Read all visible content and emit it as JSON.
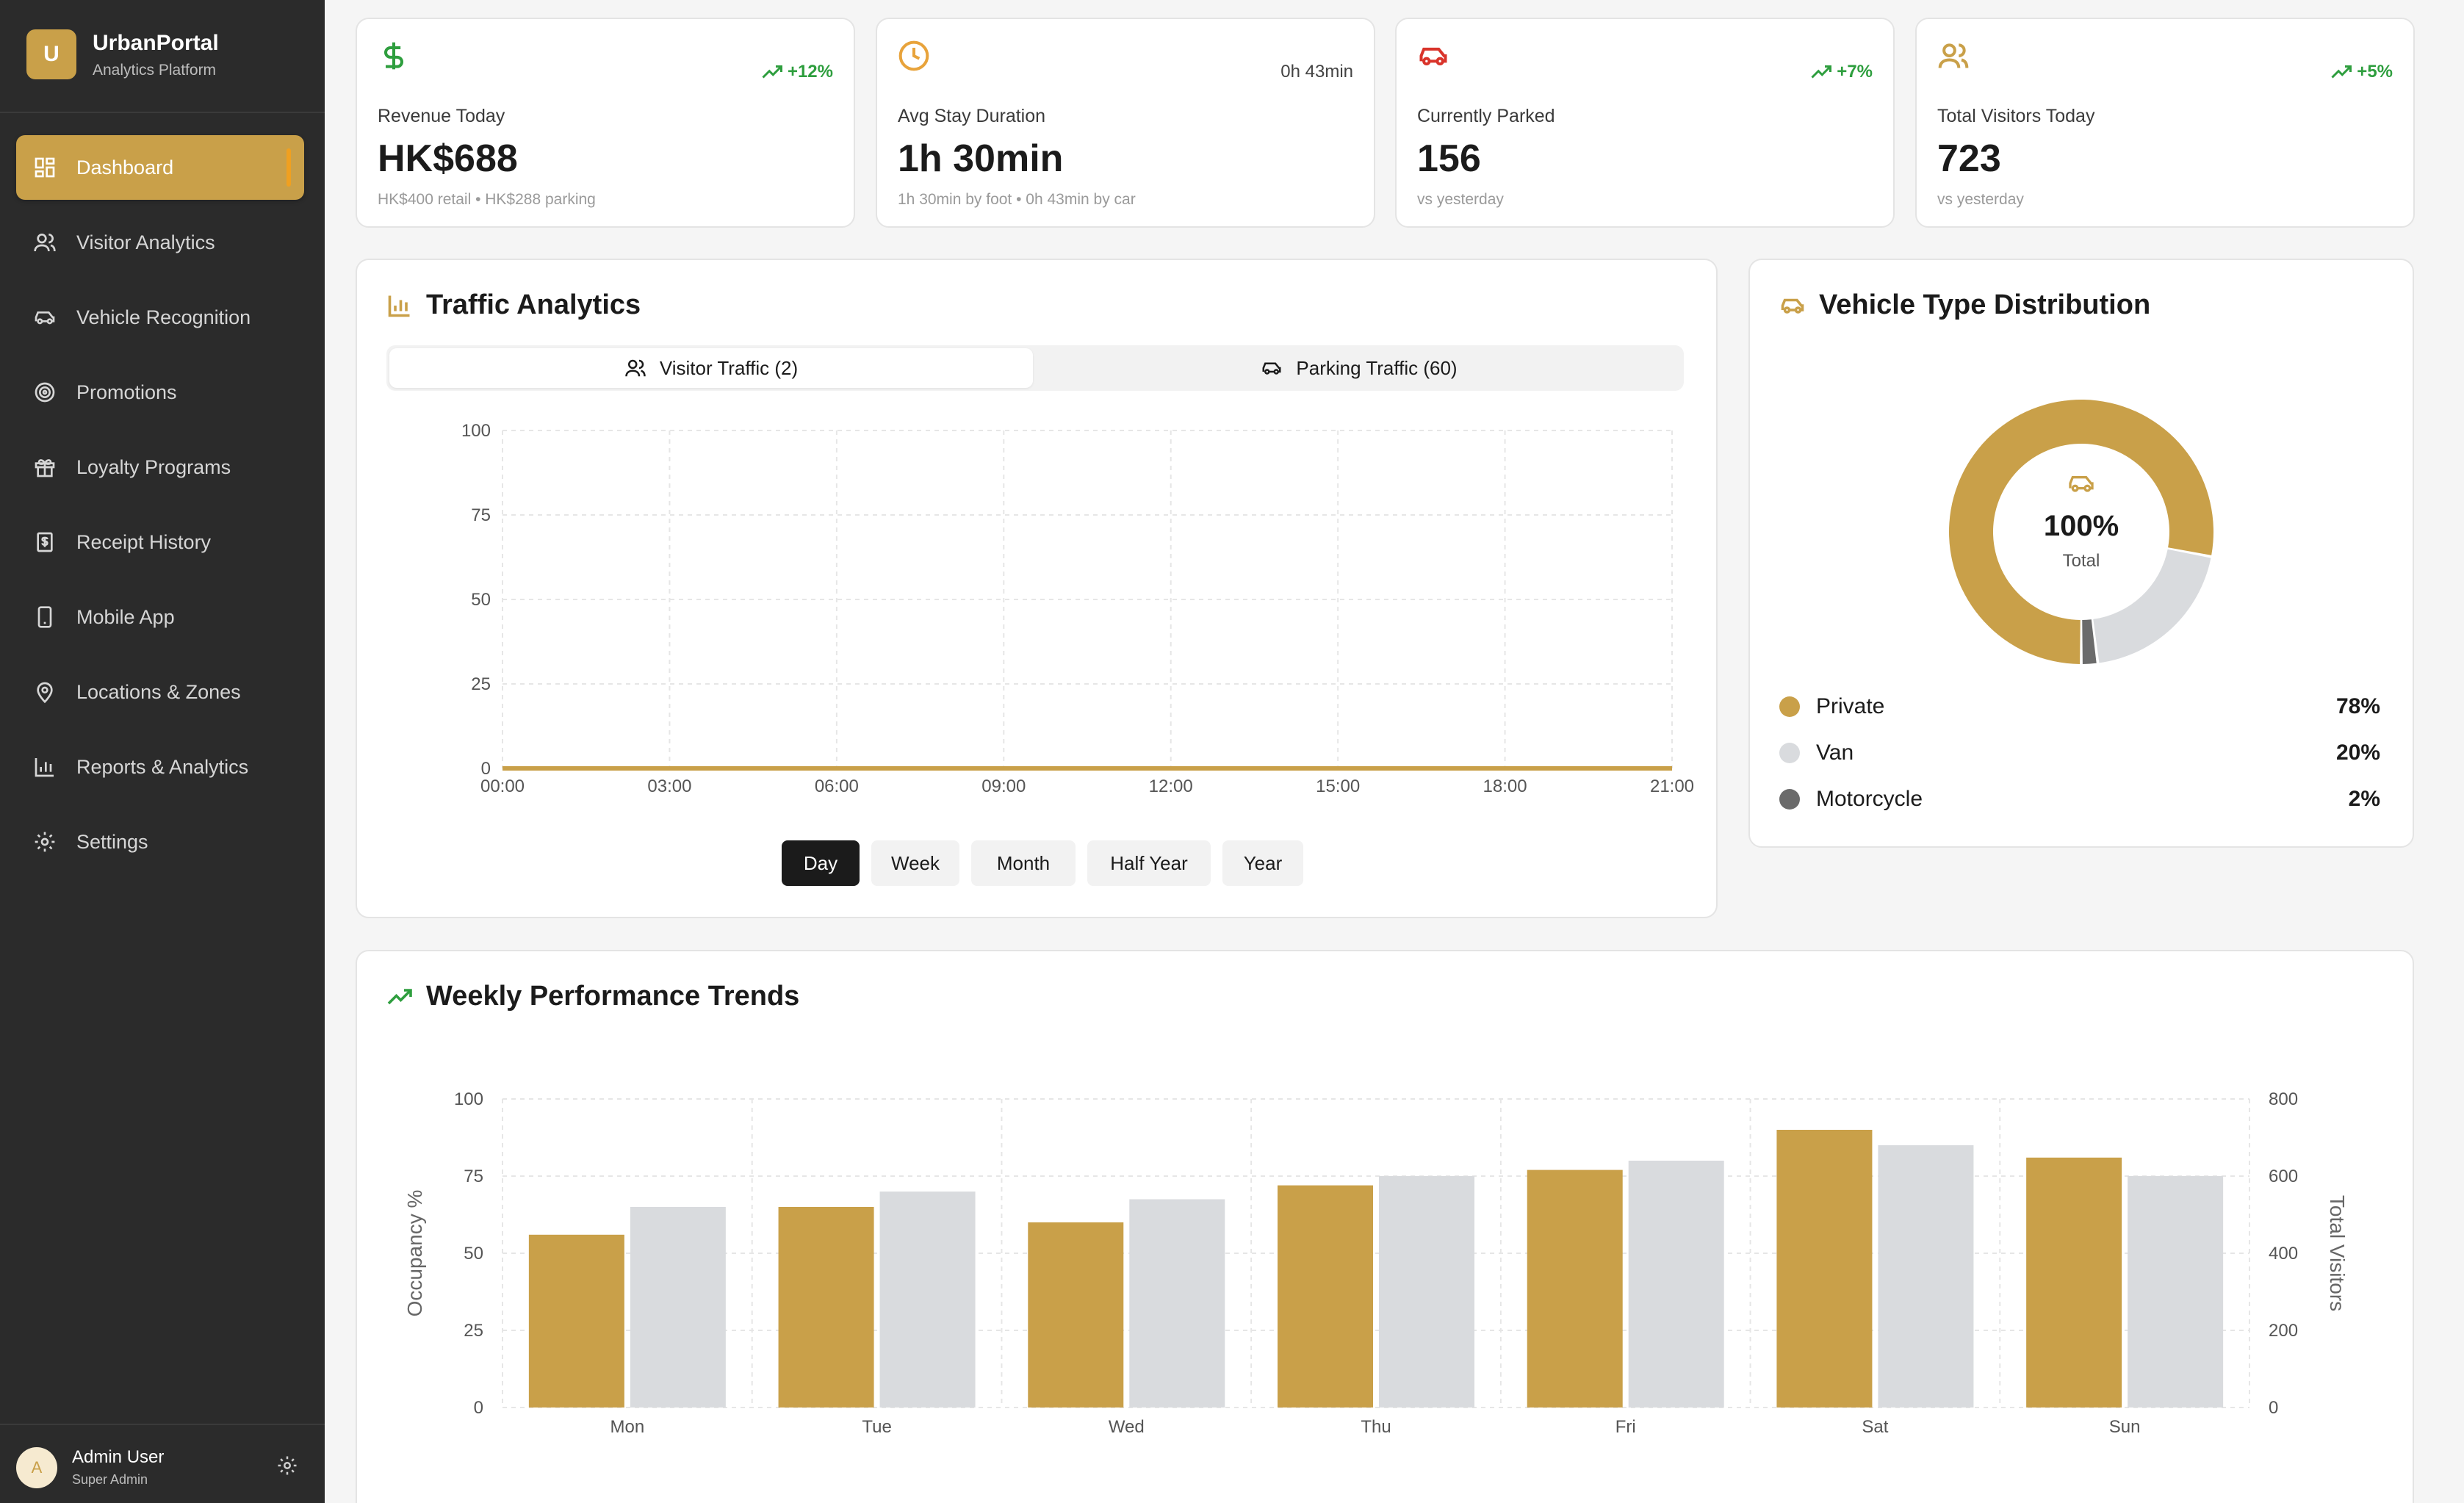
{
  "brand": {
    "logo_letter": "U",
    "name": "UrbanPortal",
    "subtitle": "Analytics Platform"
  },
  "sidebar": {
    "items": [
      {
        "label": "Dashboard",
        "icon": "dashboard-icon",
        "active": true
      },
      {
        "label": "Visitor Analytics",
        "icon": "users-icon"
      },
      {
        "label": "Vehicle Recognition",
        "icon": "car-icon"
      },
      {
        "label": "Promotions",
        "icon": "target-icon"
      },
      {
        "label": "Loyalty Programs",
        "icon": "gift-icon"
      },
      {
        "label": "Receipt History",
        "icon": "receipt-icon"
      },
      {
        "label": "Mobile App",
        "icon": "phone-icon"
      },
      {
        "label": "Locations & Zones",
        "icon": "map-pin-icon"
      },
      {
        "label": "Reports & Analytics",
        "icon": "bar-chart-icon"
      },
      {
        "label": "Settings",
        "icon": "gear-icon"
      }
    ]
  },
  "user": {
    "initial": "A",
    "name": "Admin User",
    "role": "Super Admin"
  },
  "stats": [
    {
      "icon": "dollar-icon",
      "badge": "+12%",
      "label": "Revenue Today",
      "value": "HK$688",
      "sub": "HK$400 retail • HK$288 parking",
      "color": "#2e9e3e"
    },
    {
      "icon": "clock-icon",
      "badge": "0h 43min",
      "label": "Avg Stay Duration",
      "value": "1h 30min",
      "sub": "1h 30min by foot • 0h 43min by car",
      "color": "#e8a33b"
    },
    {
      "icon": "car-icon",
      "badge": "+7%",
      "label": "Currently Parked",
      "value": "156",
      "sub": "vs yesterday",
      "color": "#d9342b"
    },
    {
      "icon": "users-icon",
      "badge": "+5%",
      "label": "Total Visitors Today",
      "value": "723",
      "sub": "vs yesterday",
      "color": "#c9a049"
    }
  ],
  "traffic": {
    "title": "Traffic Analytics",
    "tabs": [
      {
        "label": "Visitor Traffic (2)",
        "active": true
      },
      {
        "label": "Parking Traffic (60)"
      }
    ],
    "ranges": [
      "Day",
      "Week",
      "Month",
      "Half Year",
      "Year"
    ],
    "active_range": "Day"
  },
  "vehicle": {
    "title": "Vehicle Type Distribution",
    "center_value": "100%",
    "center_label": "Total",
    "legend": [
      {
        "name": "Private",
        "value": "78%",
        "color": "#c9a049"
      },
      {
        "name": "Van",
        "value": "20%",
        "color": "#d9dbde"
      },
      {
        "name": "Motorcycle",
        "value": "2%",
        "color": "#6b6b6b"
      }
    ]
  },
  "weekly": {
    "title": "Weekly Performance Trends"
  },
  "chart_data": [
    {
      "type": "line",
      "x": [
        "00:00",
        "03:00",
        "06:00",
        "09:00",
        "12:00",
        "15:00",
        "18:00",
        "21:00"
      ],
      "series": [
        {
          "values": [
            0,
            0,
            0,
            0,
            0,
            0,
            0,
            0
          ],
          "color": "#c9a049"
        }
      ],
      "yticks": [
        0,
        25,
        50,
        75,
        100
      ],
      "ylim": [
        0,
        100
      ],
      "grid": true
    },
    {
      "type": "pie",
      "labels": [
        "Private",
        "Van",
        "Motorcycle"
      ],
      "values": [
        78,
        20,
        2
      ],
      "colors": [
        "#c9a049",
        "#d9dbde",
        "#6b6b6b"
      ],
      "donut": true
    },
    {
      "type": "bar",
      "categories": [
        "Mon",
        "Tue",
        "Wed",
        "Thu",
        "Fri",
        "Sat",
        "Sun"
      ],
      "series": [
        {
          "values": [
            56,
            65,
            60,
            72,
            77,
            90,
            81
          ],
          "color": "#c9a049",
          "axis": "left"
        },
        {
          "values": [
            520,
            560,
            540,
            600,
            640,
            680,
            600
          ],
          "color": "#d9dbde",
          "axis": "right"
        }
      ],
      "ylabel": "Occupancy %",
      "ylabel_right": "Total Visitors",
      "ylim": [
        0,
        100
      ],
      "ylim_right": [
        0,
        800
      ],
      "yticks": [
        0,
        25,
        50,
        75,
        100
      ],
      "yticks_right": [
        0,
        200,
        400,
        600,
        800
      ],
      "grid": true
    }
  ]
}
